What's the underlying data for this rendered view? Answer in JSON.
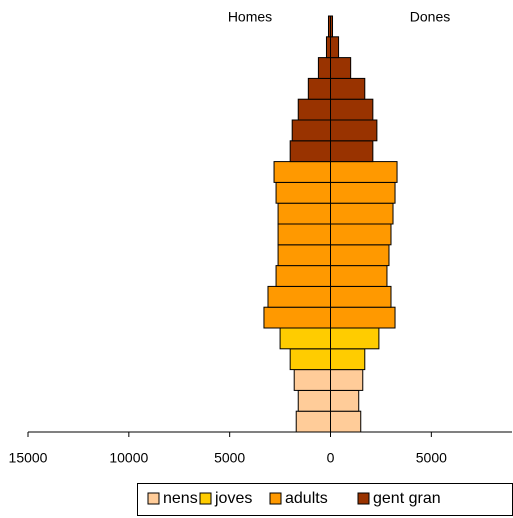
{
  "chart_data": {
    "type": "pyramid",
    "left_label": "Homes",
    "right_label": "Dones",
    "xlim": [
      -15000,
      9000
    ],
    "xticks": [
      {
        "value": -15000,
        "label": "15000"
      },
      {
        "value": -10000,
        "label": "10000"
      },
      {
        "value": -5000,
        "label": "5000"
      },
      0,
      5000
    ],
    "series": [
      {
        "name": "nens",
        "color": "#FFCC99",
        "homes": [
          -1700,
          -1600,
          -1800
        ],
        "dones": [
          1500,
          1400,
          1600
        ]
      },
      {
        "name": "joves",
        "color": "#FFCC00",
        "homes": [
          -2000,
          -2500
        ],
        "dones": [
          1700,
          2400
        ]
      },
      {
        "name": "adults",
        "color": "#FF9900",
        "homes": [
          -3300,
          -3100,
          -2700,
          -2600,
          -2600,
          -2600,
          -2700,
          -2800
        ],
        "dones": [
          3200,
          3000,
          2800,
          2900,
          3000,
          3100,
          3200,
          3300
        ]
      },
      {
        "name": "gent gran",
        "color": "#993300",
        "homes": [
          -2000,
          -1900,
          -1600,
          -1100,
          -600,
          -200,
          -100
        ],
        "dones": [
          2100,
          2300,
          2100,
          1700,
          1000,
          400,
          100
        ]
      }
    ]
  }
}
